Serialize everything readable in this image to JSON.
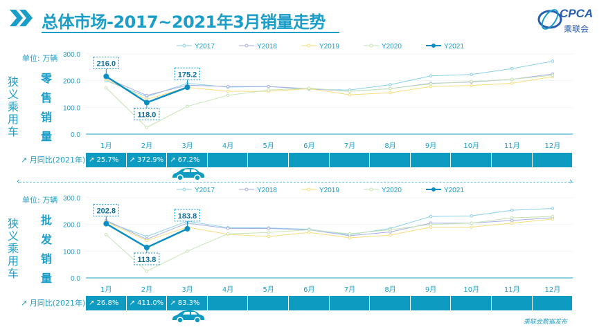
{
  "title": "总体市场-2017~2021年3月销量走势",
  "logo": {
    "text": "CPCA",
    "sub": "乘联会"
  },
  "unit_label": "单位:  万辆",
  "months": [
    "1月",
    "2月",
    "3月",
    "4月",
    "5月",
    "6月",
    "7月",
    "8月",
    "9月",
    "10月",
    "11月",
    "12月"
  ],
  "legend": [
    "Y2017",
    "Y2018",
    "Y2019",
    "Y2020",
    "Y2021"
  ],
  "colors": {
    "Y2017": "#88cfe6",
    "Y2018": "#a7aee6",
    "Y2019": "#f6dc7a",
    "Y2020": "#c6e3b5",
    "Y2021": "#0d8ec0",
    "accent": "#1a9dc7",
    "bar": "#0d9bc1"
  },
  "side_label": "狭义乘用车",
  "yoy_label": "月同比(2021年)",
  "charts": [
    {
      "id": "retail",
      "metric_label": "零售销量",
      "yoy": [
        "25.7%",
        "372.9%",
        "67.2%",
        "",
        "",
        "",
        "",
        "",
        "",
        "",
        "",
        ""
      ],
      "chart_data": {
        "type": "line",
        "categories": [
          "1月",
          "2月",
          "3月",
          "4月",
          "5月",
          "6月",
          "7月",
          "8月",
          "9月",
          "10月",
          "11月",
          "12月"
        ],
        "ylim": [
          0,
          300
        ],
        "yticks": [
          "0.0",
          "100.0",
          "200.0",
          "300.0"
        ],
        "series": [
          {
            "name": "Y2017",
            "values": [
              200,
              140,
              190,
              176,
              178,
              168,
              165,
              185,
              218,
              223,
              245,
              273
            ]
          },
          {
            "name": "Y2018",
            "values": [
              210,
              145,
              183,
              178,
              178,
              170,
              160,
              170,
              190,
              195,
              205,
              225
            ]
          },
          {
            "name": "Y2019",
            "values": [
              206,
              130,
              175,
              160,
              160,
              170,
              147,
              155,
              178,
              182,
              190,
              215
            ]
          },
          {
            "name": "Y2020",
            "values": [
              173,
              25,
              104,
              145,
              165,
              172,
              160,
              170,
              188,
              197,
              205,
              220
            ]
          },
          {
            "name": "Y2021",
            "values": [
              216.0,
              118.0,
              175.2
            ]
          }
        ],
        "labels": [
          "216.0",
          "118.0",
          "175.2"
        ]
      }
    },
    {
      "id": "wholesale",
      "metric_label": "批发销量",
      "yoy": [
        "26.8%",
        "411.0%",
        "83.3%",
        "",
        "",
        "",
        "",
        "",
        "",
        "",
        "",
        ""
      ],
      "chart_data": {
        "type": "line",
        "categories": [
          "1月",
          "2月",
          "3月",
          "4月",
          "5月",
          "6月",
          "7月",
          "8月",
          "9月",
          "10月",
          "11月",
          "12月"
        ],
        "ylim": [
          0,
          300
        ],
        "yticks": [
          "0.0",
          "100.0",
          "200.0",
          "300.0"
        ],
        "series": [
          {
            "name": "Y2017",
            "values": [
              210,
              155,
              212,
              188,
              187,
              182,
              162,
              185,
              230,
              232,
              253,
              260
            ]
          },
          {
            "name": "Y2018",
            "values": [
              215,
              145,
              205,
              185,
              185,
              180,
              158,
              172,
              205,
              205,
              215,
              225
            ]
          },
          {
            "name": "Y2019",
            "values": [
              210,
              140,
              190,
              163,
              155,
              170,
              150,
              160,
              190,
              190,
              205,
              220
            ]
          },
          {
            "name": "Y2020",
            "values": [
              162,
              25,
              100,
              165,
              170,
              180,
              165,
              180,
              200,
              205,
              225,
              230
            ]
          },
          {
            "name": "Y2021",
            "values": [
              202.8,
              113.8,
              183.8
            ]
          }
        ],
        "labels": [
          "202.8",
          "113.8",
          "183.8"
        ]
      }
    }
  ],
  "footer": "乘联会数据发布"
}
